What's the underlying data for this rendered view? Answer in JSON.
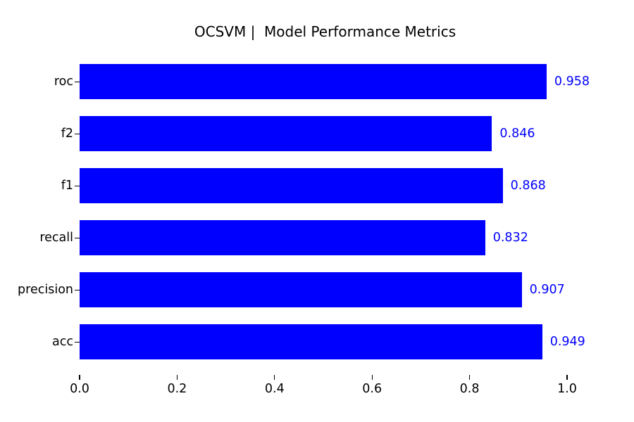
{
  "chart_data": {
    "type": "bar",
    "orientation": "horizontal",
    "title": "OCSVM |  Model Performance Metrics",
    "categories": [
      "roc",
      "f2",
      "f1",
      "recall",
      "precision",
      "acc"
    ],
    "values": [
      0.958,
      0.846,
      0.868,
      0.832,
      0.907,
      0.949
    ],
    "value_labels": [
      "0.958",
      "0.846",
      "0.868",
      "0.832",
      "0.907",
      "0.949"
    ],
    "xticks": [
      "0.0",
      "0.2",
      "0.4",
      "0.6",
      "0.8",
      "1.0"
    ],
    "xlim": [
      0,
      1.01
    ],
    "xlabel": "",
    "ylabel": "",
    "grid": false,
    "legend": null,
    "bar_color": "#0000ff",
    "value_label_color": "#0000ff",
    "text_color": "#000000",
    "background_color": "#ffffff"
  }
}
